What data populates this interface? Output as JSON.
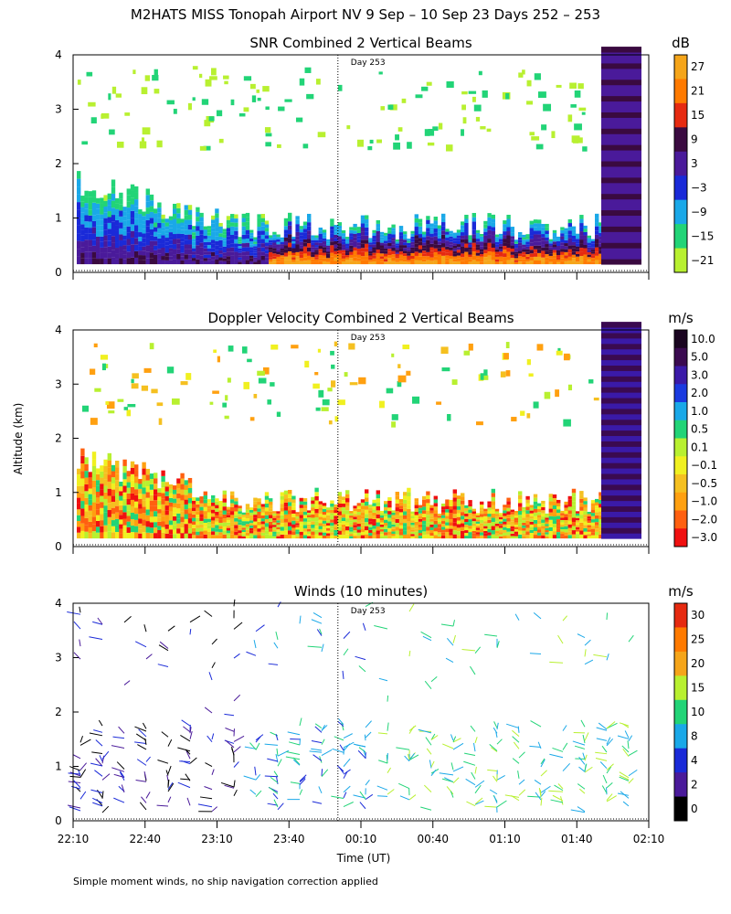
{
  "figure": {
    "title": "M2HATS MISS Tonopah Airport NV   9 Sep – 10 Sep 23 Days 252 – 253",
    "ylabel": "Altitude (km)",
    "xlabel": "Time (UT)",
    "footnote": "Simple moment winds, no ship navigation correction applied",
    "day_marker": "Day 253"
  },
  "chart_data": [
    {
      "type": "heatmap",
      "title": "SNR Combined 2 Vertical Beams",
      "units": "dB",
      "x_ticks": [
        "22:10",
        "22:40",
        "23:10",
        "23:40",
        "00:10",
        "00:40",
        "01:10",
        "01:40",
        "02:10"
      ],
      "y_ticks": [
        "0",
        "1",
        "2",
        "3",
        "4"
      ],
      "ylim": [
        0,
        4
      ],
      "colorbar_labels": [
        "27",
        "21",
        "15",
        "9",
        "3",
        "−3",
        "−9",
        "−15",
        "−21"
      ],
      "colorbar_colors": [
        "#f5a51a",
        "#ff7a00",
        "#e62a10",
        "#3a0a40",
        "#4a1a9a",
        "#1a2ad8",
        "#1aa8e8",
        "#22d477",
        "#b8f030"
      ]
    },
    {
      "type": "heatmap",
      "title": "Doppler Velocity Combined 2 Vertical Beams",
      "units": "m/s",
      "x_ticks": [
        "22:10",
        "22:40",
        "23:10",
        "23:40",
        "00:10",
        "00:40",
        "01:10",
        "01:40",
        "02:10"
      ],
      "y_ticks": [
        "0",
        "1",
        "2",
        "3",
        "4"
      ],
      "ylim": [
        0,
        4
      ],
      "colorbar_labels": [
        "10.0",
        "5.0",
        "3.0",
        "2.0",
        "1.0",
        "0.5",
        "0.1",
        "−0.1",
        "−0.5",
        "−1.0",
        "−2.0",
        "−3.0"
      ],
      "colorbar_colors": [
        "#1a0520",
        "#3a0a50",
        "#3a1aa8",
        "#1a3ae0",
        "#1aa8e8",
        "#22d477",
        "#b8f030",
        "#f0f020",
        "#f5c020",
        "#ffa010",
        "#ff6010",
        "#f01010"
      ]
    },
    {
      "type": "scatter",
      "title": "Winds (10 minutes)",
      "units": "m/s",
      "x_ticks": [
        "22:10",
        "22:40",
        "23:10",
        "23:40",
        "00:10",
        "00:40",
        "01:10",
        "01:40",
        "02:10"
      ],
      "y_ticks": [
        "0",
        "1",
        "2",
        "3",
        "4"
      ],
      "ylim": [
        0,
        4
      ],
      "colorbar_labels": [
        "30",
        "25",
        "20",
        "15",
        "10",
        "8",
        "4",
        "2",
        "0"
      ],
      "colorbar_colors": [
        "#e62a10",
        "#ff7a00",
        "#f5a51a",
        "#b8f030",
        "#22d477",
        "#1aa8e8",
        "#1a2ad8",
        "#4a1a9a",
        "#000000"
      ]
    }
  ]
}
